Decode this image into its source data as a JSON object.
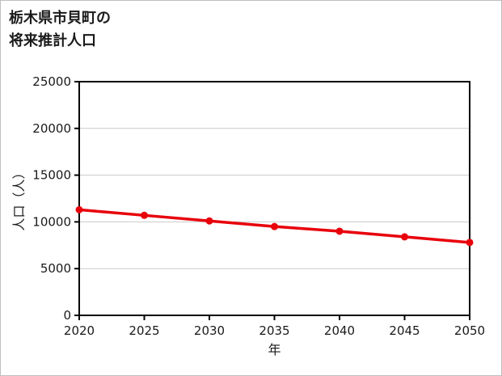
{
  "figure": {
    "title_line1": "栃木県市貝町の",
    "title_line2": "将来推計人口"
  },
  "chart_data": {
    "type": "line",
    "title": "栃木県市貝町の将来推計人口",
    "xlabel": "年",
    "ylabel": "人口（人）",
    "x": [
      2020,
      2025,
      2030,
      2035,
      2040,
      2045,
      2050
    ],
    "values": [
      11300,
      10700,
      10100,
      9500,
      9000,
      8400,
      7800
    ],
    "x_ticks": [
      2020,
      2025,
      2030,
      2035,
      2040,
      2045,
      2050
    ],
    "y_ticks": [
      0,
      5000,
      10000,
      15000,
      20000,
      25000
    ],
    "xlim": [
      2020,
      2050
    ],
    "ylim": [
      0,
      25000
    ],
    "grid": "horizontal",
    "legend": "none",
    "line_color": "#e8000b",
    "marker": "circle",
    "frame_color": "#000000",
    "gridline_color": "#c9c9c9",
    "text_color": "#1a1a1a"
  }
}
